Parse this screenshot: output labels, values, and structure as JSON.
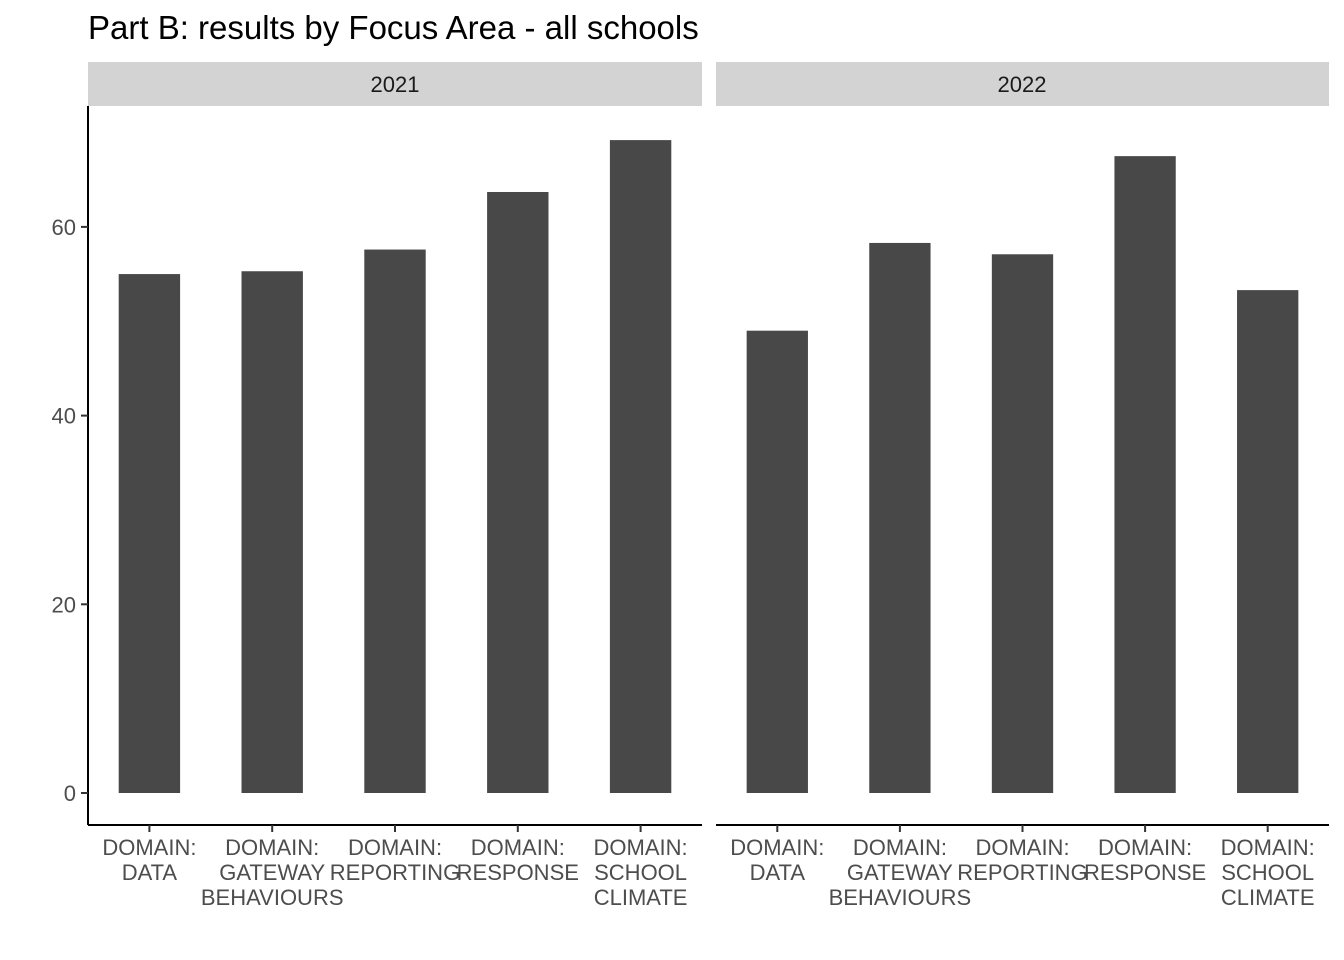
{
  "chart_data": {
    "type": "bar",
    "title": "Part B: results by Focus Area - all schools",
    "xlabel": "",
    "ylabel": "",
    "categories": [
      [
        "DOMAIN:",
        "DATA"
      ],
      [
        "DOMAIN:",
        "GATEWAY",
        "BEHAVIOURS"
      ],
      [
        "DOMAIN:",
        "REPORTING"
      ],
      [
        "DOMAIN:",
        "RESPONSE"
      ],
      [
        "DOMAIN:",
        "SCHOOL",
        "CLIMATE"
      ]
    ],
    "ylim": [
      0,
      72.5
    ],
    "yticks": [
      0,
      20,
      40,
      60
    ],
    "grid": false,
    "bar_color": "#484848",
    "strip_color": "#d3d3d3",
    "panels": [
      {
        "label": "2021",
        "values": [
          55.0,
          55.3,
          57.6,
          63.7,
          69.2
        ]
      },
      {
        "label": "2022",
        "values": [
          49.0,
          58.3,
          57.1,
          67.5,
          53.3
        ]
      }
    ]
  }
}
